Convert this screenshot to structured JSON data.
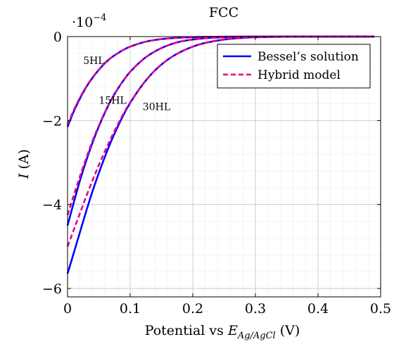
{
  "chart_data": {
    "type": "line",
    "title": "FCC",
    "xlabel_main": "Potential vs ",
    "xlabel_var": "E",
    "xlabel_sub": "Ag/AgCl",
    "xlabel_unit": " (V)",
    "ylabel_var": "I",
    "ylabel_unit": " (A)",
    "y_multiplier_base": "·10",
    "y_multiplier_exp": "−4",
    "xlim": [
      0,
      0.5
    ],
    "ylim": [
      -6.2,
      0
    ],
    "x_ticks": [
      0,
      0.1,
      0.2,
      0.3,
      0.4,
      0.5
    ],
    "x_tick_labels": [
      "0",
      "0.1",
      "0.2",
      "0.3",
      "0.4",
      "0.5"
    ],
    "y_ticks": [
      0,
      -2,
      -4,
      -6
    ],
    "y_tick_labels": [
      "0",
      "−2",
      "−4",
      "−6"
    ],
    "grid": true,
    "minor_grid": true,
    "legend_position": "top-right",
    "legend": [
      {
        "label": "Bessel’s solution",
        "color": "#0000ff",
        "style": "solid"
      },
      {
        "label": "Hybrid model",
        "color": "#e6007e",
        "style": "dashed"
      }
    ],
    "annotations": [
      {
        "text": "5HL",
        "x": 0.025,
        "y": -0.65
      },
      {
        "text": "15HL",
        "x": 0.05,
        "y": -1.6
      },
      {
        "text": "30HL",
        "x": 0.12,
        "y": -1.75
      }
    ],
    "series": [
      {
        "style": "solid",
        "color": "#0000ff",
        "curve": "5HL",
        "x": [
          0,
          0.01,
          0.02,
          0.03,
          0.04,
          0.05,
          0.06,
          0.07,
          0.08,
          0.09,
          0.1,
          0.12,
          0.14,
          0.16,
          0.18,
          0.2,
          0.22,
          0.25,
          0.28,
          0.3,
          0.35,
          0.4,
          0.45,
          0.49
        ],
        "y": [
          -2.15,
          -1.78,
          -1.47,
          -1.2,
          -0.98,
          -0.79,
          -0.63,
          -0.5,
          -0.4,
          -0.31,
          -0.24,
          -0.14,
          -0.08,
          -0.045,
          -0.025,
          -0.013,
          -0.007,
          -0.003,
          -0.001,
          -0.0005,
          0,
          0,
          0,
          0
        ]
      },
      {
        "style": "dashed",
        "color": "#e6007e",
        "curve": "5HL",
        "x": [
          0,
          0.01,
          0.02,
          0.03,
          0.04,
          0.05,
          0.06,
          0.07,
          0.08,
          0.09,
          0.1,
          0.12,
          0.14,
          0.16,
          0.18,
          0.2,
          0.22,
          0.25,
          0.28,
          0.3,
          0.35,
          0.4,
          0.45,
          0.49
        ],
        "y": [
          -2.1,
          -1.75,
          -1.45,
          -1.19,
          -0.97,
          -0.79,
          -0.63,
          -0.5,
          -0.4,
          -0.31,
          -0.24,
          -0.14,
          -0.08,
          -0.045,
          -0.025,
          -0.013,
          -0.007,
          -0.003,
          -0.001,
          -0.0005,
          0,
          0,
          0,
          0
        ]
      },
      {
        "style": "solid",
        "color": "#0000ff",
        "curve": "15HL",
        "x": [
          0,
          0.01,
          0.02,
          0.03,
          0.04,
          0.05,
          0.06,
          0.07,
          0.08,
          0.09,
          0.1,
          0.12,
          0.14,
          0.16,
          0.18,
          0.2,
          0.22,
          0.25,
          0.28,
          0.3,
          0.35,
          0.4,
          0.45,
          0.49
        ],
        "y": [
          -4.5,
          -3.95,
          -3.42,
          -2.95,
          -2.52,
          -2.14,
          -1.8,
          -1.5,
          -1.25,
          -1.03,
          -0.84,
          -0.55,
          -0.35,
          -0.21,
          -0.12,
          -0.07,
          -0.038,
          -0.015,
          -0.006,
          -0.003,
          -0.0005,
          0,
          0,
          0
        ]
      },
      {
        "style": "dashed",
        "color": "#e6007e",
        "curve": "15HL",
        "x": [
          0,
          0.01,
          0.02,
          0.03,
          0.04,
          0.05,
          0.06,
          0.07,
          0.08,
          0.09,
          0.1,
          0.12,
          0.14,
          0.16,
          0.18,
          0.2,
          0.22,
          0.25,
          0.28,
          0.3,
          0.35,
          0.4,
          0.45,
          0.49
        ],
        "y": [
          -4.25,
          -3.78,
          -3.32,
          -2.89,
          -2.48,
          -2.12,
          -1.79,
          -1.5,
          -1.25,
          -1.03,
          -0.84,
          -0.55,
          -0.35,
          -0.21,
          -0.12,
          -0.07,
          -0.038,
          -0.015,
          -0.006,
          -0.003,
          -0.0005,
          0,
          0,
          0
        ]
      },
      {
        "style": "solid",
        "color": "#0000ff",
        "curve": "30HL",
        "x": [
          0,
          0.01,
          0.02,
          0.03,
          0.04,
          0.05,
          0.06,
          0.07,
          0.08,
          0.09,
          0.1,
          0.12,
          0.14,
          0.16,
          0.18,
          0.2,
          0.22,
          0.25,
          0.28,
          0.3,
          0.35,
          0.4,
          0.45,
          0.49
        ],
        "y": [
          -5.65,
          -5.15,
          -4.65,
          -4.15,
          -3.68,
          -3.25,
          -2.85,
          -2.48,
          -2.15,
          -1.85,
          -1.58,
          -1.14,
          -0.8,
          -0.55,
          -0.37,
          -0.24,
          -0.15,
          -0.07,
          -0.03,
          -0.015,
          -0.003,
          -0.0005,
          0,
          0
        ]
      },
      {
        "style": "dashed",
        "color": "#e6007e",
        "curve": "30HL",
        "x": [
          0,
          0.01,
          0.02,
          0.03,
          0.04,
          0.05,
          0.06,
          0.07,
          0.08,
          0.09,
          0.1,
          0.12,
          0.14,
          0.16,
          0.18,
          0.2,
          0.22,
          0.25,
          0.28,
          0.3,
          0.35,
          0.4,
          0.45,
          0.49
        ],
        "y": [
          -5.0,
          -4.6,
          -4.2,
          -3.8,
          -3.42,
          -3.06,
          -2.72,
          -2.4,
          -2.1,
          -1.82,
          -1.57,
          -1.14,
          -0.8,
          -0.55,
          -0.37,
          -0.24,
          -0.15,
          -0.07,
          -0.03,
          -0.015,
          -0.003,
          -0.0005,
          0,
          0
        ]
      }
    ]
  }
}
